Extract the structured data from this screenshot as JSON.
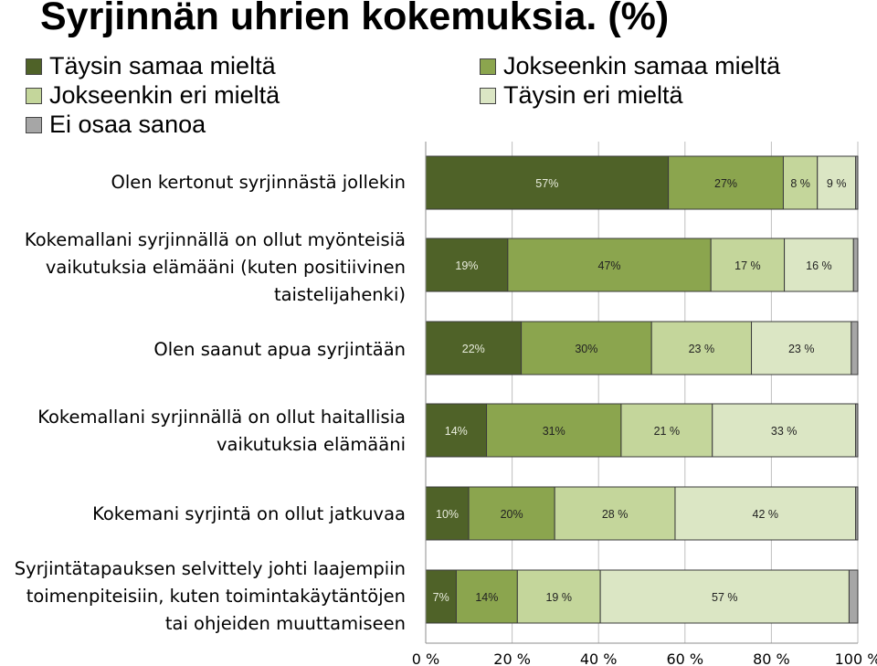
{
  "chart_data": {
    "type": "bar",
    "stacked": true,
    "orientation": "horizontal",
    "title": "Syrjinnän uhrien kokemuksia. (%)",
    "categories": [
      "Olen kertonut syrjinnästä jollekin",
      "Kokemallani syrjinnällä on ollut myönteisiä vaikutuksia elämääni (kuten positiivinen taistelijahenki)",
      "Olen saanut apua syrjintään",
      "Kokemallani syrjinnällä on ollut haitallisia vaikutuksia elämääni",
      "Kokemani syrjintä on ollut jatkuvaa",
      "Syrjintätapauksen selvittely johti laajempiin toimenpiteisiin, kuten toimintakäytäntöjen tai ohjeiden muuttamiseen"
    ],
    "category_lines": [
      [
        "Olen kertonut syrjinnästä jollekin"
      ],
      [
        "Kokemallani syrjinnällä on ollut myönteisiä",
        "vaikutuksia elämääni (kuten positiivinen",
        "taistelijahenki)"
      ],
      [
        "Olen saanut apua syrjintään"
      ],
      [
        "Kokemallani syrjinnällä on ollut haitallisia",
        "vaikutuksia elämääni"
      ],
      [
        "Kokemani syrjintä on ollut jatkuvaa"
      ],
      [
        "Syrjintätapauksen selvittely johti laajempiin",
        "toimenpiteisiin, kuten toimintakäytäntöjen",
        "tai ohjeiden muuttamiseen"
      ]
    ],
    "series": [
      {
        "name": "Täysin samaa mieltä",
        "color": "#4f6228",
        "values": [
          57,
          19,
          22,
          14,
          10,
          7
        ],
        "labels": [
          "57%",
          "19%",
          "22%",
          "14%",
          "10%",
          "7%"
        ]
      },
      {
        "name": "Jokseenkin samaa mieltä",
        "color": "#8ba54e",
        "values": [
          27,
          47,
          30,
          31,
          20,
          14
        ],
        "labels": [
          "27%",
          "47%",
          "30%",
          "31%",
          "20%",
          "14%"
        ]
      },
      {
        "name": "Jokseenkin eri mieltä",
        "color": "#c4d69b",
        "values": [
          8,
          17,
          23,
          21,
          28,
          19
        ],
        "labels": [
          "8 %",
          "17 %",
          "23 %",
          "21 %",
          "28 %",
          "19 %"
        ]
      },
      {
        "name": "Täysin eri mieltä",
        "color": "#dbe6c4",
        "values": [
          9,
          16,
          23,
          33,
          42,
          57
        ],
        "labels": [
          "9 %",
          "16 %",
          "23 %",
          "33 %",
          "42 %",
          "57 %"
        ]
      },
      {
        "name": "Ei osaa sanoa",
        "color": "#a6a6a6",
        "values": [
          0.5,
          1,
          1.5,
          0.5,
          0.5,
          2
        ],
        "labels": [
          "",
          "",
          "",
          "",
          "",
          ""
        ]
      }
    ],
    "xlim": [
      0,
      100
    ],
    "xticks": [
      "0 %",
      "20 %",
      "40 %",
      "60 %",
      "80 %",
      "100 %"
    ],
    "gridlines": true,
    "legend_position": "top"
  }
}
